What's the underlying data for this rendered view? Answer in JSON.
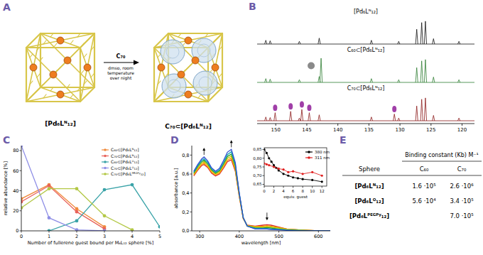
{
  "figure": {
    "panel_labels": [
      "A",
      "B",
      "C",
      "D",
      "E"
    ]
  },
  "scheme": {
    "left_label": "[Pd₆Lᴺ₁₂]",
    "arrow_label": "C₇₀",
    "arrow_sublabel": "dmso, room temperature over night",
    "right_label": "C₇₀⊂[Pd₆Lᴺ₁₂]"
  },
  "chart_data": [
    {
      "type": "spectrum",
      "xlim": [
        153,
        118
      ],
      "xticks": [
        150,
        145,
        140,
        135,
        130,
        125,
        120
      ],
      "ylim": [
        0,
        1
      ],
      "tick_labels": "x",
      "series": [
        {
          "name": "[Pd₆Lᴺ₁₂]",
          "color": "#111111",
          "x": [
            151.6,
            150.9,
            146.2,
            143.0,
            134.6,
            130.2,
            127.3,
            126.5,
            125.9,
            124.6,
            120.5
          ],
          "values": [
            0.14,
            0.12,
            0.1,
            0.22,
            0.14,
            0.1,
            0.55,
            0.8,
            0.85,
            0.2,
            0.1
          ]
        },
        {
          "name": "C₆₀⊂[Pd₆Lᴺ₁₂]",
          "color": "#2e7d32",
          "marker": "circle",
          "highlight_x": [
            144.3
          ],
          "x": [
            151.6,
            150.9,
            146.2,
            143.0,
            142.7,
            134.6,
            130.2,
            127.3,
            126.5,
            125.9,
            124.6,
            120.5
          ],
          "values": [
            0.14,
            0.12,
            0.1,
            0.22,
            0.9,
            0.14,
            0.1,
            0.55,
            0.8,
            0.85,
            0.2,
            0.1
          ]
        },
        {
          "name": "C₇₀⊂[Pd₆Lᴺ₁₂]",
          "color": "#8b1a1a",
          "marker": "ellipse",
          "highlight_x": [
            150.1,
            147.6,
            145.8,
            144.6,
            130.9
          ],
          "x": [
            151.6,
            150.9,
            150.1,
            147.6,
            146.2,
            145.8,
            144.6,
            143.0,
            134.6,
            130.9,
            130.2,
            127.3,
            126.5,
            125.9,
            124.6,
            120.5
          ],
          "values": [
            0.14,
            0.12,
            0.3,
            0.35,
            0.1,
            0.42,
            0.3,
            0.22,
            0.14,
            0.25,
            0.1,
            0.55,
            0.8,
            0.85,
            0.2,
            0.1
          ]
        }
      ]
    },
    {
      "type": "line",
      "marker": "circle",
      "legend": "top-right",
      "xlabel": "Number of fullerene guest bound per M₆L₁₂ sphere [%]",
      "ylabel": "relative abundance [%]",
      "x": [
        0,
        1,
        2,
        3,
        4,
        5
      ],
      "xlim": [
        0,
        5
      ],
      "xticks": [
        0,
        1,
        2,
        3,
        4,
        5
      ],
      "ylim": [
        0,
        85
      ],
      "yticks": [
        0,
        20,
        40,
        60,
        80
      ],
      "series": [
        {
          "name": "C₆₀⊂[Pd₆Lᴺ₁₂]",
          "color": "#f08a3c",
          "values": [
            32,
            46,
            22,
            4,
            null,
            null
          ]
        },
        {
          "name": "C₇₀⊂[Pd₆Lᴺ₁₂]",
          "color": "#e8625a",
          "values": [
            29,
            45,
            19,
            2,
            null,
            null
          ]
        },
        {
          "name": "C₆₀⊂[Pd₆Lᴼ₁₂]",
          "color": "#3aa3a8",
          "values": [
            null,
            0,
            10,
            41,
            46,
            4
          ]
        },
        {
          "name": "C₇₀⊂[Pd₆Lᴼ₁₂]",
          "color": "#8f8fe6",
          "values": [
            85,
            13,
            1,
            0,
            null,
            null
          ]
        },
        {
          "name": "C₇₀⊂[Pd₆Lᴾᴱᴳᴾʸ₁₂]",
          "color": "#b3c846",
          "values": [
            23,
            42,
            42,
            15,
            1,
            null
          ]
        }
      ]
    },
    {
      "type": "line",
      "xlabel": "wavelength [nm]",
      "ylabel": "absorbance [a.u.]",
      "x": [
        285,
        295,
        305,
        311,
        320,
        330,
        340,
        350,
        360,
        370,
        380,
        390,
        400,
        410,
        420,
        440,
        460,
        470,
        480,
        500,
        520,
        550,
        600,
        630
      ],
      "xlim": [
        280,
        630
      ],
      "xticks": [
        300,
        400,
        500,
        600
      ],
      "ylim": [
        0,
        0.9
      ],
      "yticks": [
        {
          "value": 0,
          "label": "0,0"
        },
        {
          "value": 0.2,
          "label": "0,2"
        },
        {
          "value": 0.4,
          "label": "0,4"
        },
        {
          "value": 0.6,
          "label": "0,6"
        },
        {
          "value": 0.8,
          "label": "0,8"
        }
      ],
      "series": [
        {
          "color": "#d62728",
          "values": [
            0.58,
            0.64,
            0.69,
            0.7,
            0.67,
            0.61,
            0.58,
            0.6,
            0.66,
            0.73,
            0.75,
            0.63,
            0.36,
            0.13,
            0.06,
            0.05,
            0.06,
            0.065,
            0.06,
            0.04,
            0.02,
            0.01,
            0.0,
            0.0
          ]
        },
        {
          "color": "#ff9900",
          "values": [
            0.59,
            0.65,
            0.7,
            0.715,
            0.68,
            0.62,
            0.59,
            0.61,
            0.675,
            0.745,
            0.77,
            0.645,
            0.37,
            0.13,
            0.055,
            0.045,
            0.05,
            0.055,
            0.05,
            0.035,
            0.02,
            0.01,
            0.0,
            0.0
          ]
        },
        {
          "color": "#c8c200",
          "values": [
            0.6,
            0.665,
            0.715,
            0.73,
            0.695,
            0.635,
            0.6,
            0.625,
            0.69,
            0.765,
            0.79,
            0.665,
            0.38,
            0.135,
            0.055,
            0.04,
            0.04,
            0.045,
            0.04,
            0.03,
            0.015,
            0.01,
            0.0,
            0.0
          ]
        },
        {
          "color": "#2ca02c",
          "values": [
            0.61,
            0.68,
            0.73,
            0.745,
            0.71,
            0.645,
            0.61,
            0.635,
            0.705,
            0.785,
            0.81,
            0.685,
            0.39,
            0.14,
            0.05,
            0.03,
            0.03,
            0.035,
            0.03,
            0.02,
            0.01,
            0.005,
            0.0,
            0.0
          ]
        },
        {
          "color": "#17a2b8",
          "values": [
            0.62,
            0.69,
            0.745,
            0.76,
            0.725,
            0.655,
            0.62,
            0.645,
            0.72,
            0.805,
            0.835,
            0.7,
            0.395,
            0.14,
            0.05,
            0.025,
            0.025,
            0.025,
            0.02,
            0.015,
            0.01,
            0.005,
            0.0,
            0.0
          ]
        },
        {
          "color": "#3050d0",
          "values": [
            0.63,
            0.7,
            0.76,
            0.78,
            0.74,
            0.665,
            0.63,
            0.66,
            0.74,
            0.83,
            0.86,
            0.72,
            0.4,
            0.14,
            0.05,
            0.02,
            0.02,
            0.02,
            0.015,
            0.01,
            0.005,
            0.0,
            0.0,
            0.0
          ]
        }
      ]
    },
    {
      "type": "scatter",
      "marker": "circle",
      "line_style": "solid",
      "legend": "top-right",
      "xlabel": "equiv. guest",
      "xlim": [
        0,
        13
      ],
      "xticks": [
        0,
        2,
        4,
        6,
        8,
        10,
        12
      ],
      "ylim": [
        0.64,
        0.86
      ],
      "yticks": [
        {
          "value": 0.65,
          "label": "0,65"
        },
        {
          "value": 0.7,
          "label": "0,70"
        },
        {
          "value": 0.75,
          "label": "0,75"
        },
        {
          "value": 0.8,
          "label": "0,80"
        },
        {
          "value": 0.85,
          "label": "0,85"
        }
      ],
      "series": [
        {
          "name": "380 nm",
          "color": "#000000",
          "x": [
            0,
            0.5,
            1,
            1.5,
            2,
            2.5,
            3,
            4,
            5,
            6,
            7,
            8,
            10,
            12
          ],
          "values": [
            0.85,
            0.83,
            0.8,
            0.78,
            0.76,
            0.745,
            0.73,
            0.71,
            0.7,
            0.69,
            0.685,
            0.68,
            0.675,
            0.665
          ]
        },
        {
          "name": "311 nm",
          "color": "#e02020",
          "x": [
            0,
            0.5,
            1,
            2,
            3,
            4,
            5,
            6,
            8,
            10,
            12
          ],
          "values": [
            0.77,
            0.765,
            0.76,
            0.75,
            0.74,
            0.735,
            0.72,
            0.725,
            0.71,
            0.72,
            0.7
          ]
        }
      ]
    }
  ],
  "table": {
    "title": "Binding constant (Kb) M⁻¹",
    "header": [
      "Sphere",
      "C₆₀",
      "C₇₀"
    ],
    "rows": [
      [
        "[Pd₆Lᴺ₁₂]",
        "1.6 ·10⁵",
        "2.6 ·10⁶"
      ],
      [
        "[Pd₆Lᴼ₁₂]",
        "5.6 ·10⁴",
        "3.4 ·10⁵"
      ],
      [
        "[Pd₆Lᴾᴱᴳᴾʸ₁₂]",
        null,
        "7.0 ·10⁵"
      ]
    ]
  }
}
